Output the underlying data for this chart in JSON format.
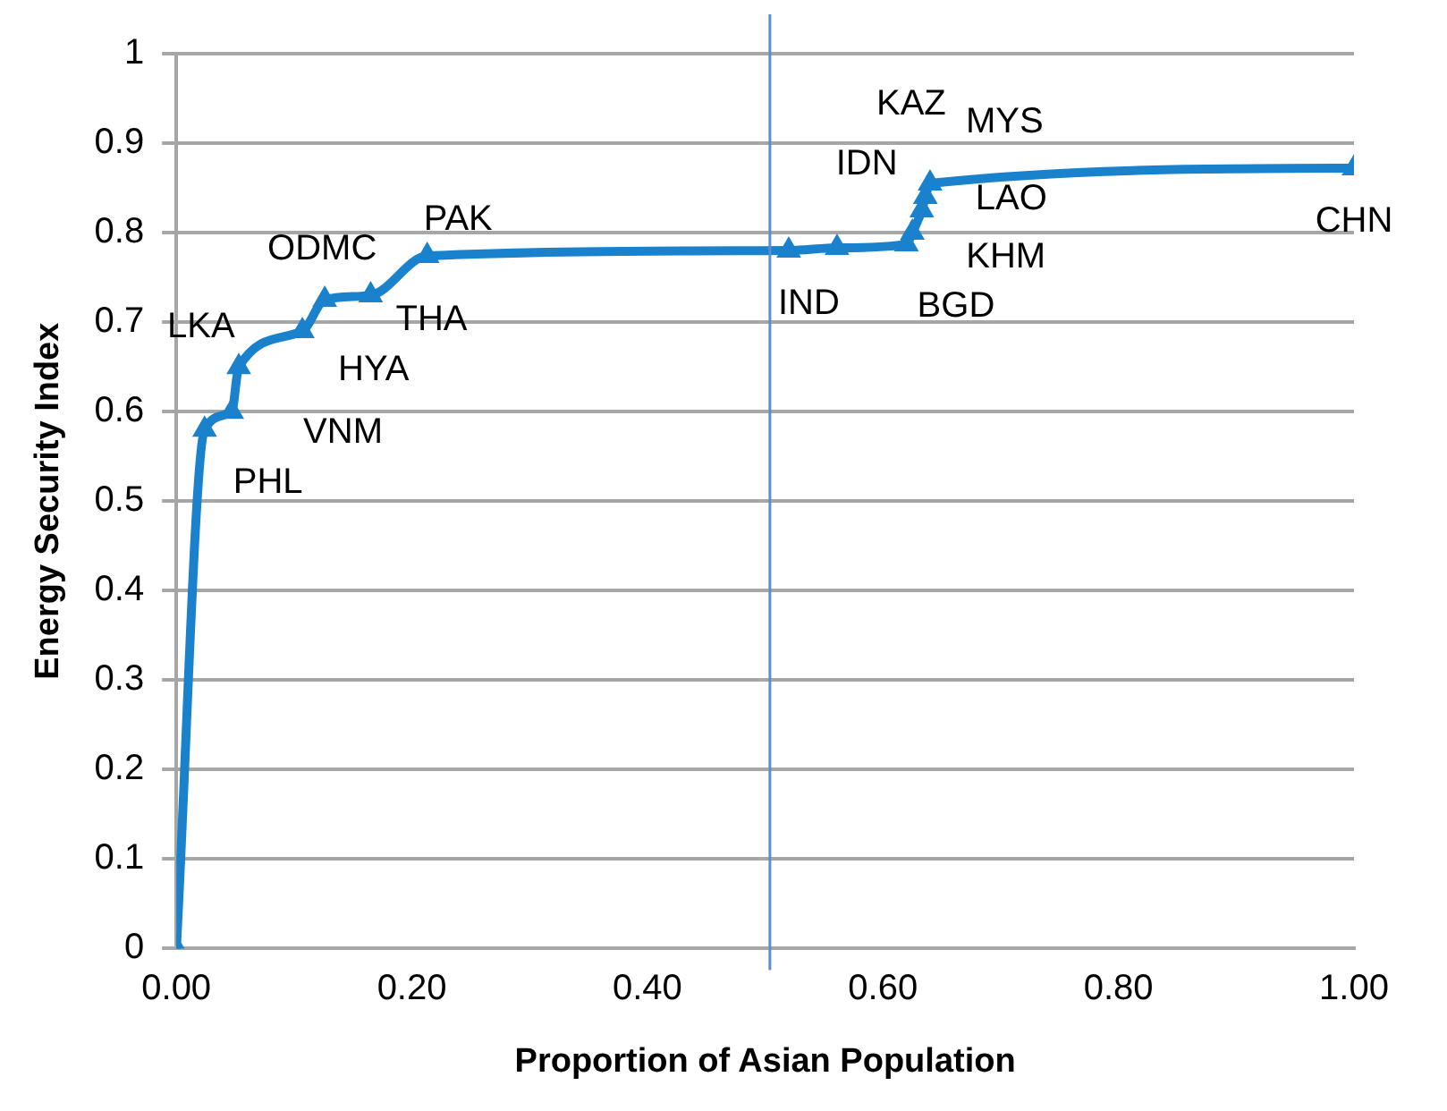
{
  "chart_data": {
    "type": "line",
    "xlabel": "Proportion of Asian Population",
    "ylabel": "Energy Security Index",
    "series": [
      {
        "color": "#1a82cc",
        "x": [
          0,
          0.024,
          0.047,
          0.053,
          0.107,
          0.126,
          0.165,
          0.213,
          0.52,
          0.561,
          0.62,
          0.625,
          0.633,
          0.636,
          0.64,
          1.0
        ],
        "values": [
          0,
          0.58,
          0.6,
          0.65,
          0.69,
          0.725,
          0.73,
          0.774,
          0.78,
          0.783,
          0.787,
          0.8,
          0.825,
          0.84,
          0.855,
          0.872
        ]
      }
    ],
    "annotations": [
      {
        "text": "PHL",
        "x": 0.024,
        "y": 0.58
      },
      {
        "text": "VNM",
        "x": 0.047,
        "y": 0.6
      },
      {
        "text": "LKA",
        "x": 0.053,
        "y": 0.65
      },
      {
        "text": "HYA",
        "x": 0.107,
        "y": 0.69
      },
      {
        "text": "ODMC",
        "x": 0.126,
        "y": 0.725
      },
      {
        "text": "THA",
        "x": 0.165,
        "y": 0.73
      },
      {
        "text": "PAK",
        "x": 0.213,
        "y": 0.774
      },
      {
        "text": "IND",
        "x": 0.52,
        "y": 0.78
      },
      {
        "text": "BGD",
        "x": 0.62,
        "y": 0.787
      },
      {
        "text": "KHM",
        "x": 0.625,
        "y": 0.8
      },
      {
        "text": "LAO",
        "x": 0.633,
        "y": 0.825
      },
      {
        "text": "IDN",
        "x": 0.636,
        "y": 0.84
      },
      {
        "text": "KAZ",
        "x": 0.64,
        "y": 0.855
      },
      {
        "text": "MYS",
        "x": 0.64,
        "y": 0.855
      },
      {
        "text": "CHN",
        "x": 1.0,
        "y": 0.872
      }
    ],
    "ref_lines": [
      {
        "axis": "x",
        "value": 0.504,
        "color": "#5b8fd0"
      }
    ],
    "xlim": [
      0,
      1
    ],
    "xticks": [
      {
        "value": 0,
        "label": "0.00"
      },
      {
        "value": 0.2,
        "label": "0.20"
      },
      {
        "value": 0.4,
        "label": "0.40"
      },
      {
        "value": 0.6,
        "label": "0.60"
      },
      {
        "value": 0.8,
        "label": "0.80"
      },
      {
        "value": 1,
        "label": "1.00"
      }
    ],
    "ylim": [
      0,
      1
    ],
    "yticks": [
      0,
      0.1,
      0.2,
      0.3,
      0.4,
      0.5,
      0.6,
      0.7,
      0.8,
      0.9,
      1
    ],
    "grid": "y",
    "legend": false,
    "marker": "triangle",
    "line_style": "solid"
  }
}
